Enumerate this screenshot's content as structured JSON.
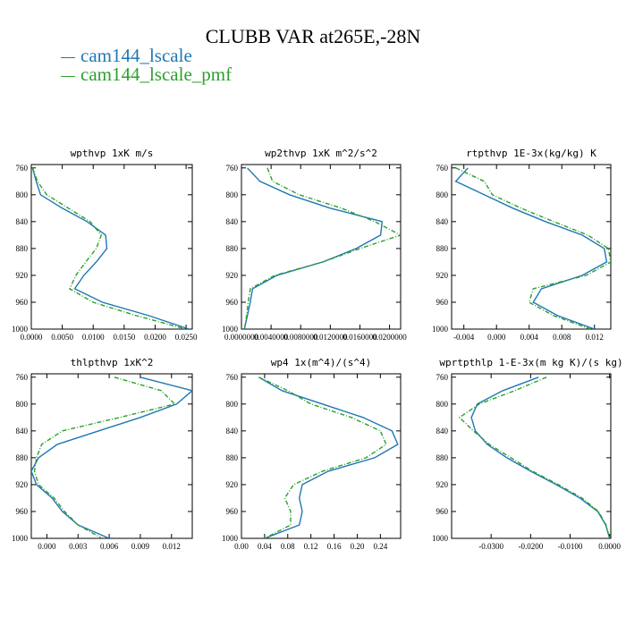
{
  "title": "CLUBB VAR at265E,-28N",
  "legend": [
    {
      "label": "cam144_lscale",
      "color": "#1f77b4"
    },
    {
      "label": "cam144_lscale_pmf",
      "color": "#2ca02c"
    }
  ],
  "chart_data": [
    {
      "type": "line",
      "title": "wpthvp   1xK m/s",
      "y": [
        760,
        780,
        800,
        820,
        840,
        860,
        880,
        900,
        920,
        940,
        960,
        980,
        1000
      ],
      "ylim": [
        1000,
        755
      ],
      "yticks": [
        760,
        800,
        840,
        880,
        920,
        960,
        1000
      ],
      "xlim": [
        0.0,
        0.026
      ],
      "xticks": [
        0.0,
        0.005,
        0.01,
        0.015,
        0.02,
        0.025
      ],
      "xticklabels": [
        "0.0000",
        "0.0050",
        "0.0100",
        "0.0150",
        "0.0200",
        "0.0250"
      ],
      "series": [
        {
          "name": "cam144_lscale",
          "values": [
            0.0002,
            0.0008,
            0.0015,
            0.005,
            0.009,
            0.012,
            0.0122,
            0.0105,
            0.0085,
            0.007,
            0.0115,
            0.019,
            0.0255
          ]
        },
        {
          "name": "cam144_lscale_pmf",
          "values": [
            0.0002,
            0.001,
            0.0025,
            0.006,
            0.0095,
            0.0113,
            0.0105,
            0.0088,
            0.0072,
            0.0062,
            0.01,
            0.017,
            0.025
          ]
        }
      ]
    },
    {
      "type": "line",
      "title": "wp2thvp   1xK m^2/s^2",
      "y": [
        760,
        780,
        800,
        820,
        840,
        860,
        880,
        900,
        920,
        940,
        960,
        980,
        1000
      ],
      "ylim": [
        1000,
        755
      ],
      "yticks": [
        760,
        800,
        840,
        880,
        920,
        960,
        1000
      ],
      "xlim": [
        0.0,
        0.0215
      ],
      "xticks": [
        0.0,
        0.004,
        0.008,
        0.012,
        0.016,
        0.02
      ],
      "xticklabels": [
        "0.0000000",
        "0.0040000",
        "0.0080000",
        "0.0120000",
        "0.0160000",
        "0.0200000"
      ],
      "series": [
        {
          "name": "cam144_lscale",
          "values": [
            0.0008,
            0.0025,
            0.0065,
            0.012,
            0.019,
            0.0188,
            0.0155,
            0.011,
            0.0048,
            0.0015,
            0.0012,
            0.0008,
            0.0004
          ]
        },
        {
          "name": "cam144_lscale_pmf",
          "values": [
            0.0035,
            0.0042,
            0.0078,
            0.0135,
            0.018,
            0.0215,
            0.016,
            0.011,
            0.0045,
            0.0012,
            0.0009,
            0.0007,
            0.0004
          ]
        }
      ]
    },
    {
      "type": "line",
      "title": "rtpthvp   1E-3x(kg/kg) K",
      "y": [
        760,
        780,
        800,
        820,
        840,
        860,
        880,
        900,
        920,
        940,
        960,
        980,
        1000
      ],
      "ylim": [
        1000,
        755
      ],
      "yticks": [
        760,
        800,
        840,
        880,
        920,
        960,
        1000
      ],
      "xlim": [
        -0.0055,
        0.014
      ],
      "xticks": [
        -0.004,
        0.0,
        0.004,
        0.008,
        0.012
      ],
      "xticklabels": [
        "-0.004",
        "0.000",
        "0.004",
        "0.008",
        "0.012"
      ],
      "series": [
        {
          "name": "cam144_lscale",
          "values": [
            -0.0035,
            -0.005,
            -0.0015,
            0.002,
            0.006,
            0.0105,
            0.0132,
            0.0135,
            0.0105,
            0.0055,
            0.0045,
            0.0075,
            0.012
          ]
        },
        {
          "name": "cam144_lscale_pmf",
          "values": [
            -0.005,
            -0.0015,
            -0.0005,
            0.003,
            0.007,
            0.0112,
            0.0137,
            0.014,
            0.011,
            0.0045,
            0.004,
            0.007,
            0.0115
          ]
        }
      ]
    },
    {
      "type": "line",
      "title": "thlpthvp   1xK^2",
      "y": [
        760,
        780,
        800,
        820,
        840,
        860,
        880,
        900,
        920,
        940,
        960,
        980,
        1000
      ],
      "ylim": [
        1000,
        755
      ],
      "yticks": [
        760,
        800,
        840,
        880,
        920,
        960,
        1000
      ],
      "xlim": [
        -0.0015,
        0.014
      ],
      "xticks": [
        0.0,
        0.003,
        0.006,
        0.009,
        0.012
      ],
      "xticklabels": [
        "0.000",
        "0.003",
        "0.006",
        "0.009",
        "0.012"
      ],
      "series": [
        {
          "name": "cam144_lscale",
          "values": [
            0.009,
            0.014,
            0.0125,
            0.009,
            0.005,
            0.001,
            -0.0008,
            -0.0015,
            -0.001,
            0.0005,
            0.0015,
            0.003,
            0.006
          ]
        },
        {
          "name": "cam144_lscale_pmf",
          "values": [
            0.0065,
            0.011,
            0.0123,
            0.007,
            0.0015,
            -0.0005,
            -0.001,
            -0.0012,
            -0.0008,
            0.0007,
            0.0017,
            0.003,
            0.0053
          ]
        }
      ]
    },
    {
      "type": "line",
      "title": "wp4   1x(m^4)/(s^4)",
      "y": [
        760,
        780,
        800,
        820,
        840,
        860,
        880,
        900,
        920,
        940,
        960,
        980,
        1000
      ],
      "ylim": [
        1000,
        755
      ],
      "yticks": [
        760,
        800,
        840,
        880,
        920,
        960,
        1000
      ],
      "xlim": [
        0.0,
        0.275
      ],
      "xticks": [
        0.0,
        0.04,
        0.08,
        0.12,
        0.16,
        0.2,
        0.24
      ],
      "xticklabels": [
        "0.00",
        "0.04",
        "0.08",
        "0.12",
        "0.16",
        "0.20",
        "0.24"
      ],
      "series": [
        {
          "name": "cam144_lscale",
          "values": [
            0.03,
            0.07,
            0.14,
            0.21,
            0.26,
            0.27,
            0.23,
            0.15,
            0.105,
            0.1,
            0.105,
            0.1,
            0.04
          ]
        },
        {
          "name": "cam144_lscale_pmf",
          "values": [
            0.03,
            0.08,
            0.12,
            0.19,
            0.24,
            0.25,
            0.215,
            0.14,
            0.09,
            0.075,
            0.085,
            0.085,
            0.04
          ]
        }
      ]
    },
    {
      "type": "line",
      "title": "wprtpthlp   1-E-3x(m kg K)/(s kg)",
      "y": [
        760,
        780,
        800,
        820,
        840,
        860,
        880,
        900,
        920,
        940,
        960,
        980,
        1000
      ],
      "ylim": [
        1000,
        755
      ],
      "yticks": [
        760,
        800,
        840,
        880,
        920,
        960,
        1000
      ],
      "xlim": [
        -0.04,
        0.0003
      ],
      "xticks": [
        -0.03,
        -0.02,
        -0.01,
        0.0
      ],
      "xticklabels": [
        "-0.0300",
        "-0.0200",
        "-0.0100",
        "0.0000"
      ],
      "series": [
        {
          "name": "cam144_lscale",
          "values": [
            -0.018,
            -0.027,
            -0.0335,
            -0.035,
            -0.034,
            -0.031,
            -0.026,
            -0.02,
            -0.0135,
            -0.0075,
            -0.003,
            -0.001,
            0.0
          ]
        },
        {
          "name": "cam144_lscale_pmf",
          "values": [
            -0.016,
            -0.024,
            -0.033,
            -0.038,
            -0.0345,
            -0.0305,
            -0.025,
            -0.0195,
            -0.013,
            -0.007,
            -0.0028,
            -0.0009,
            0.0
          ]
        }
      ]
    }
  ]
}
